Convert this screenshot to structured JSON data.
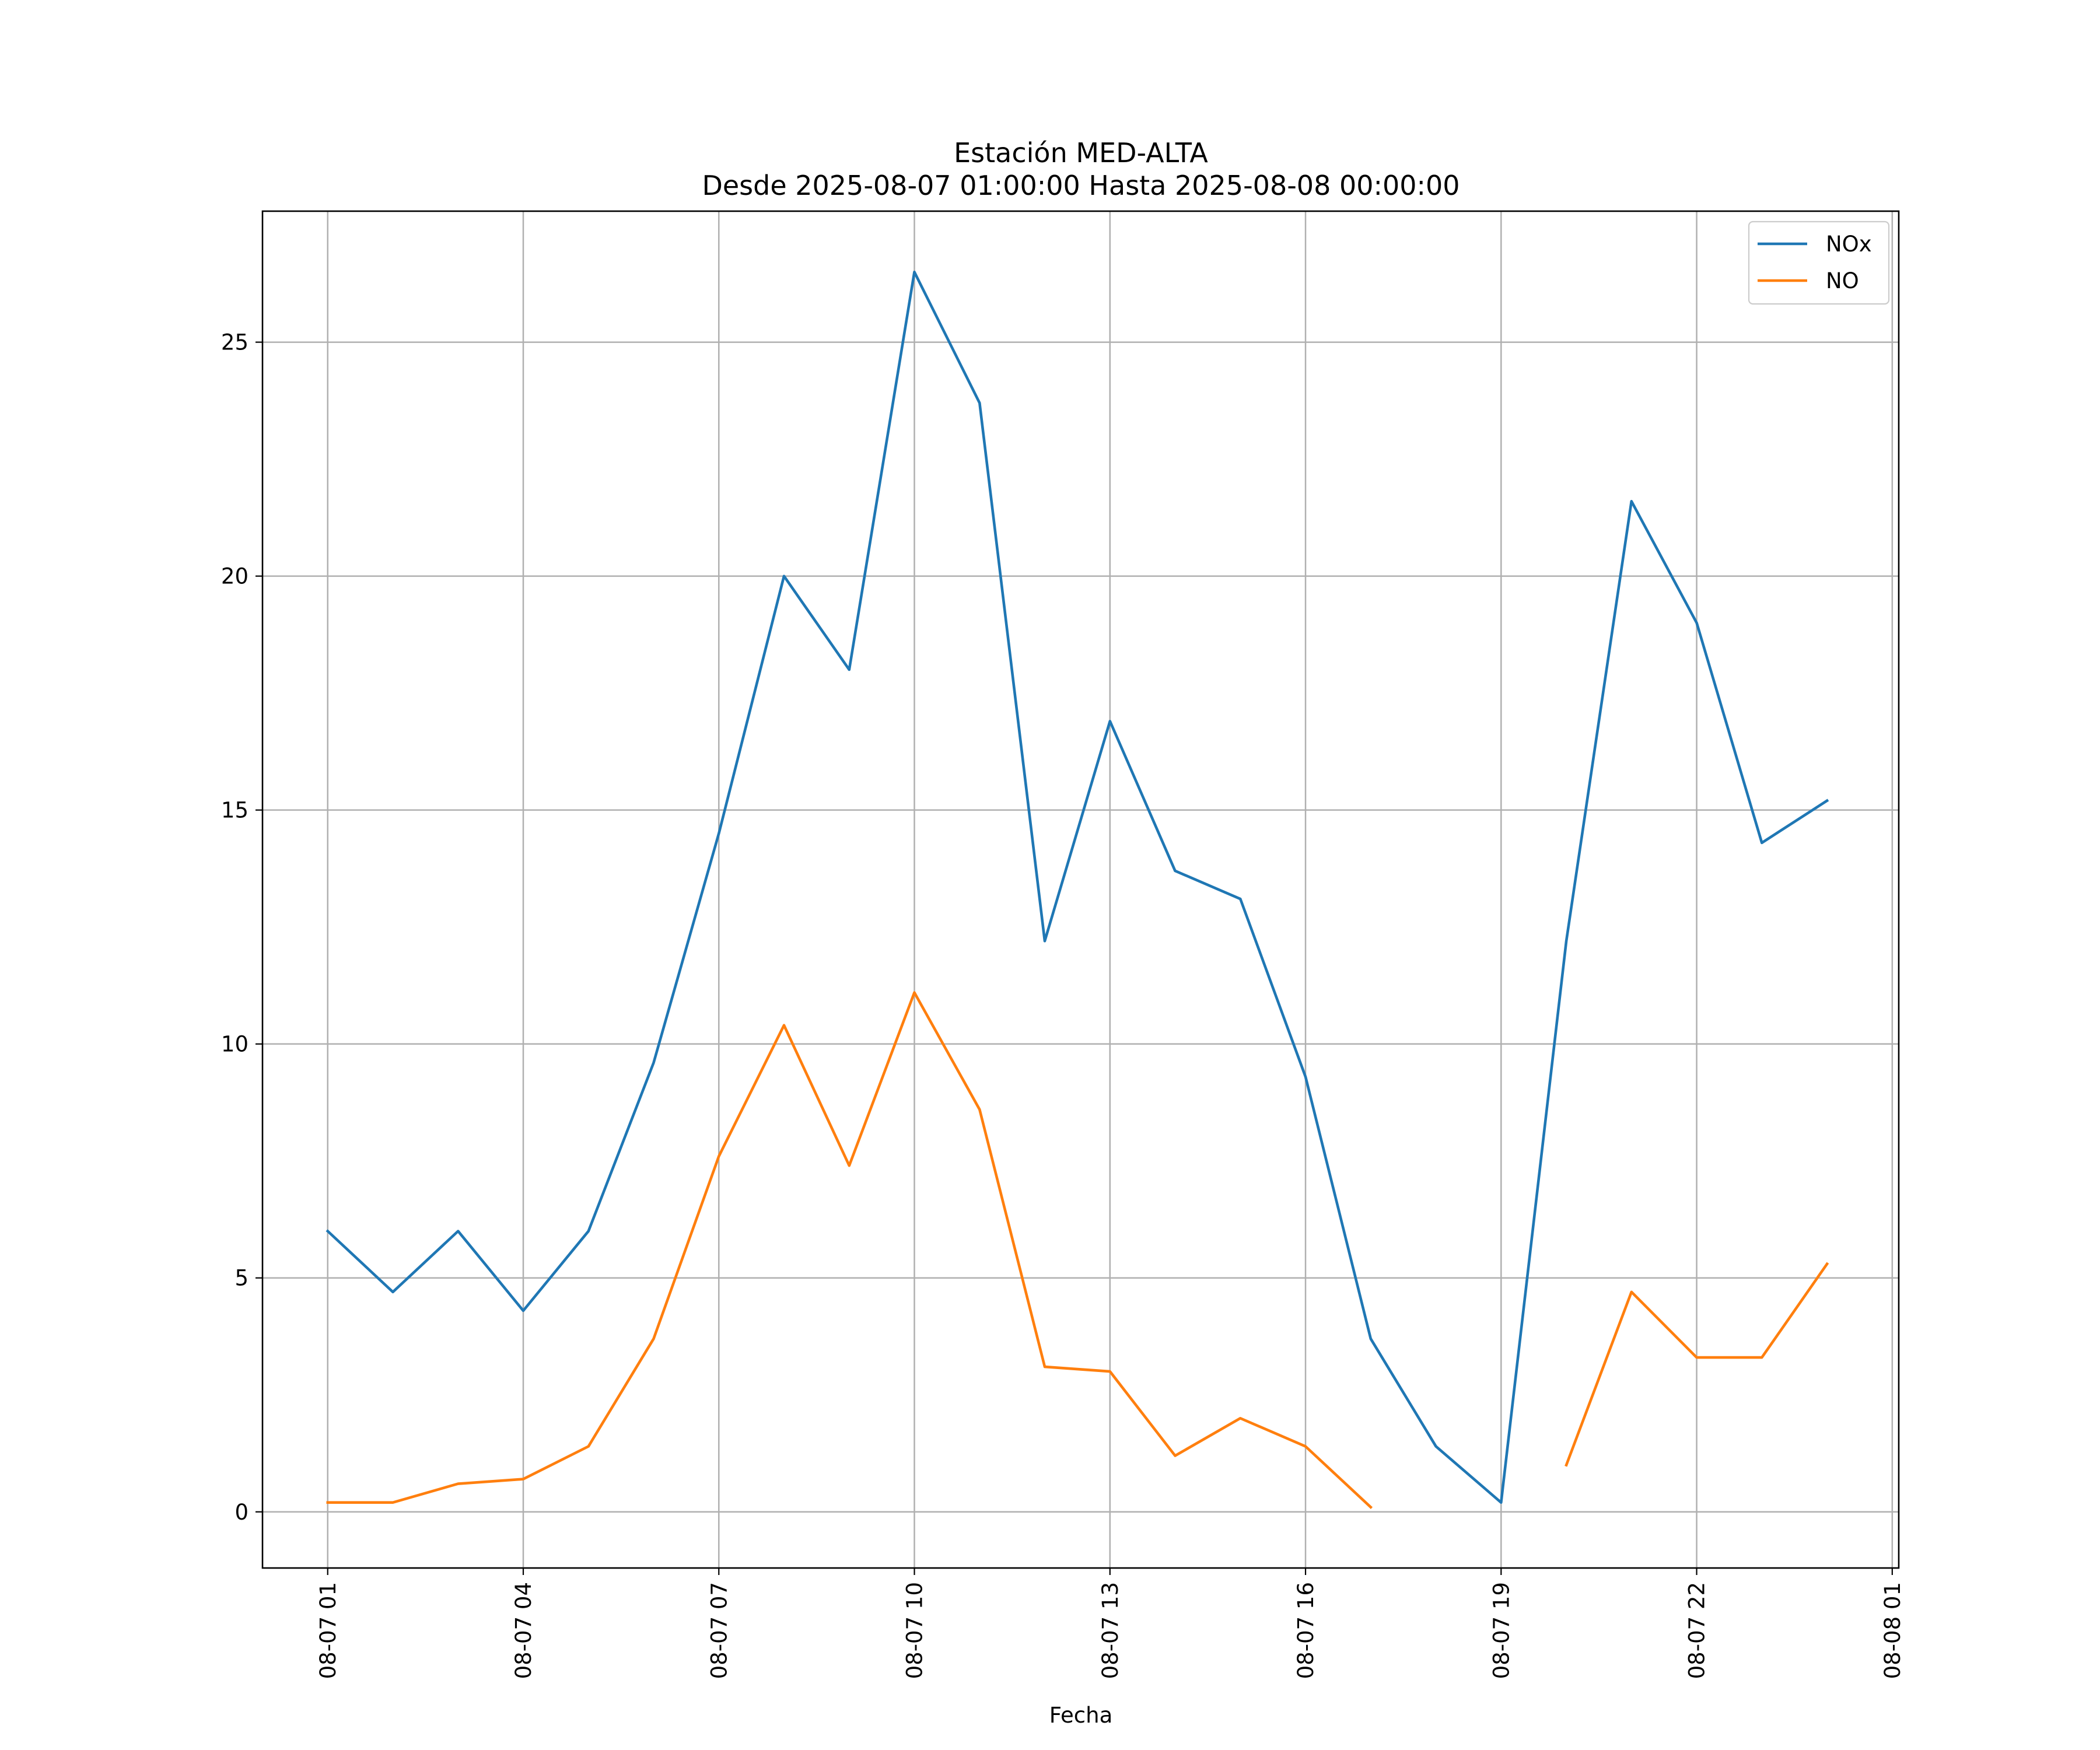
{
  "chart_data": {
    "type": "line",
    "title": "Estación MED-ALTA",
    "subtitle": "Desde 2025-08-07 01:00:00 Hasta 2025-08-08 00:00:00",
    "xlabel": "Fecha",
    "ylabel": "",
    "x_hours": [
      1,
      2,
      3,
      4,
      5,
      6,
      7,
      8,
      9,
      10,
      11,
      12,
      13,
      14,
      15,
      16,
      17,
      18,
      19,
      20,
      21,
      22,
      23,
      24
    ],
    "x_ticks": [
      {
        "hour": 1,
        "label": "08-07 01"
      },
      {
        "hour": 4,
        "label": "08-07 04"
      },
      {
        "hour": 7,
        "label": "08-07 07"
      },
      {
        "hour": 10,
        "label": "08-07 10"
      },
      {
        "hour": 13,
        "label": "08-07 13"
      },
      {
        "hour": 16,
        "label": "08-07 16"
      },
      {
        "hour": 19,
        "label": "08-07 19"
      },
      {
        "hour": 22,
        "label": "08-07 22"
      },
      {
        "hour": 25,
        "label": "08-08 01"
      }
    ],
    "y_ticks": [
      {
        "value": 0,
        "label": "0"
      },
      {
        "value": 5,
        "label": "5"
      },
      {
        "value": 10,
        "label": "10"
      },
      {
        "value": 15,
        "label": "15"
      },
      {
        "value": 20,
        "label": "20"
      },
      {
        "value": 25,
        "label": "25"
      }
    ],
    "xlim": [
      0.0,
      25.1
    ],
    "ylim": [
      -1.2,
      27.8
    ],
    "grid": true,
    "legend_position": "top-right",
    "series": [
      {
        "name": "NOx",
        "color": "#1f77b4",
        "values": [
          6.0,
          4.7,
          6.0,
          4.3,
          6.0,
          9.6,
          14.5,
          20.0,
          18.0,
          26.5,
          23.7,
          12.2,
          16.9,
          13.7,
          13.1,
          9.3,
          3.7,
          1.4,
          0.2,
          12.2,
          21.6,
          19.0,
          14.3,
          15.2
        ]
      },
      {
        "name": "NO",
        "color": "#ff7f0e",
        "values": [
          0.2,
          0.2,
          0.6,
          0.7,
          1.4,
          3.7,
          7.6,
          10.4,
          7.4,
          11.1,
          8.6,
          3.1,
          3.0,
          1.2,
          2.0,
          1.4,
          0.1,
          null,
          null,
          1.0,
          4.7,
          3.3,
          3.3,
          5.3
        ]
      }
    ]
  }
}
